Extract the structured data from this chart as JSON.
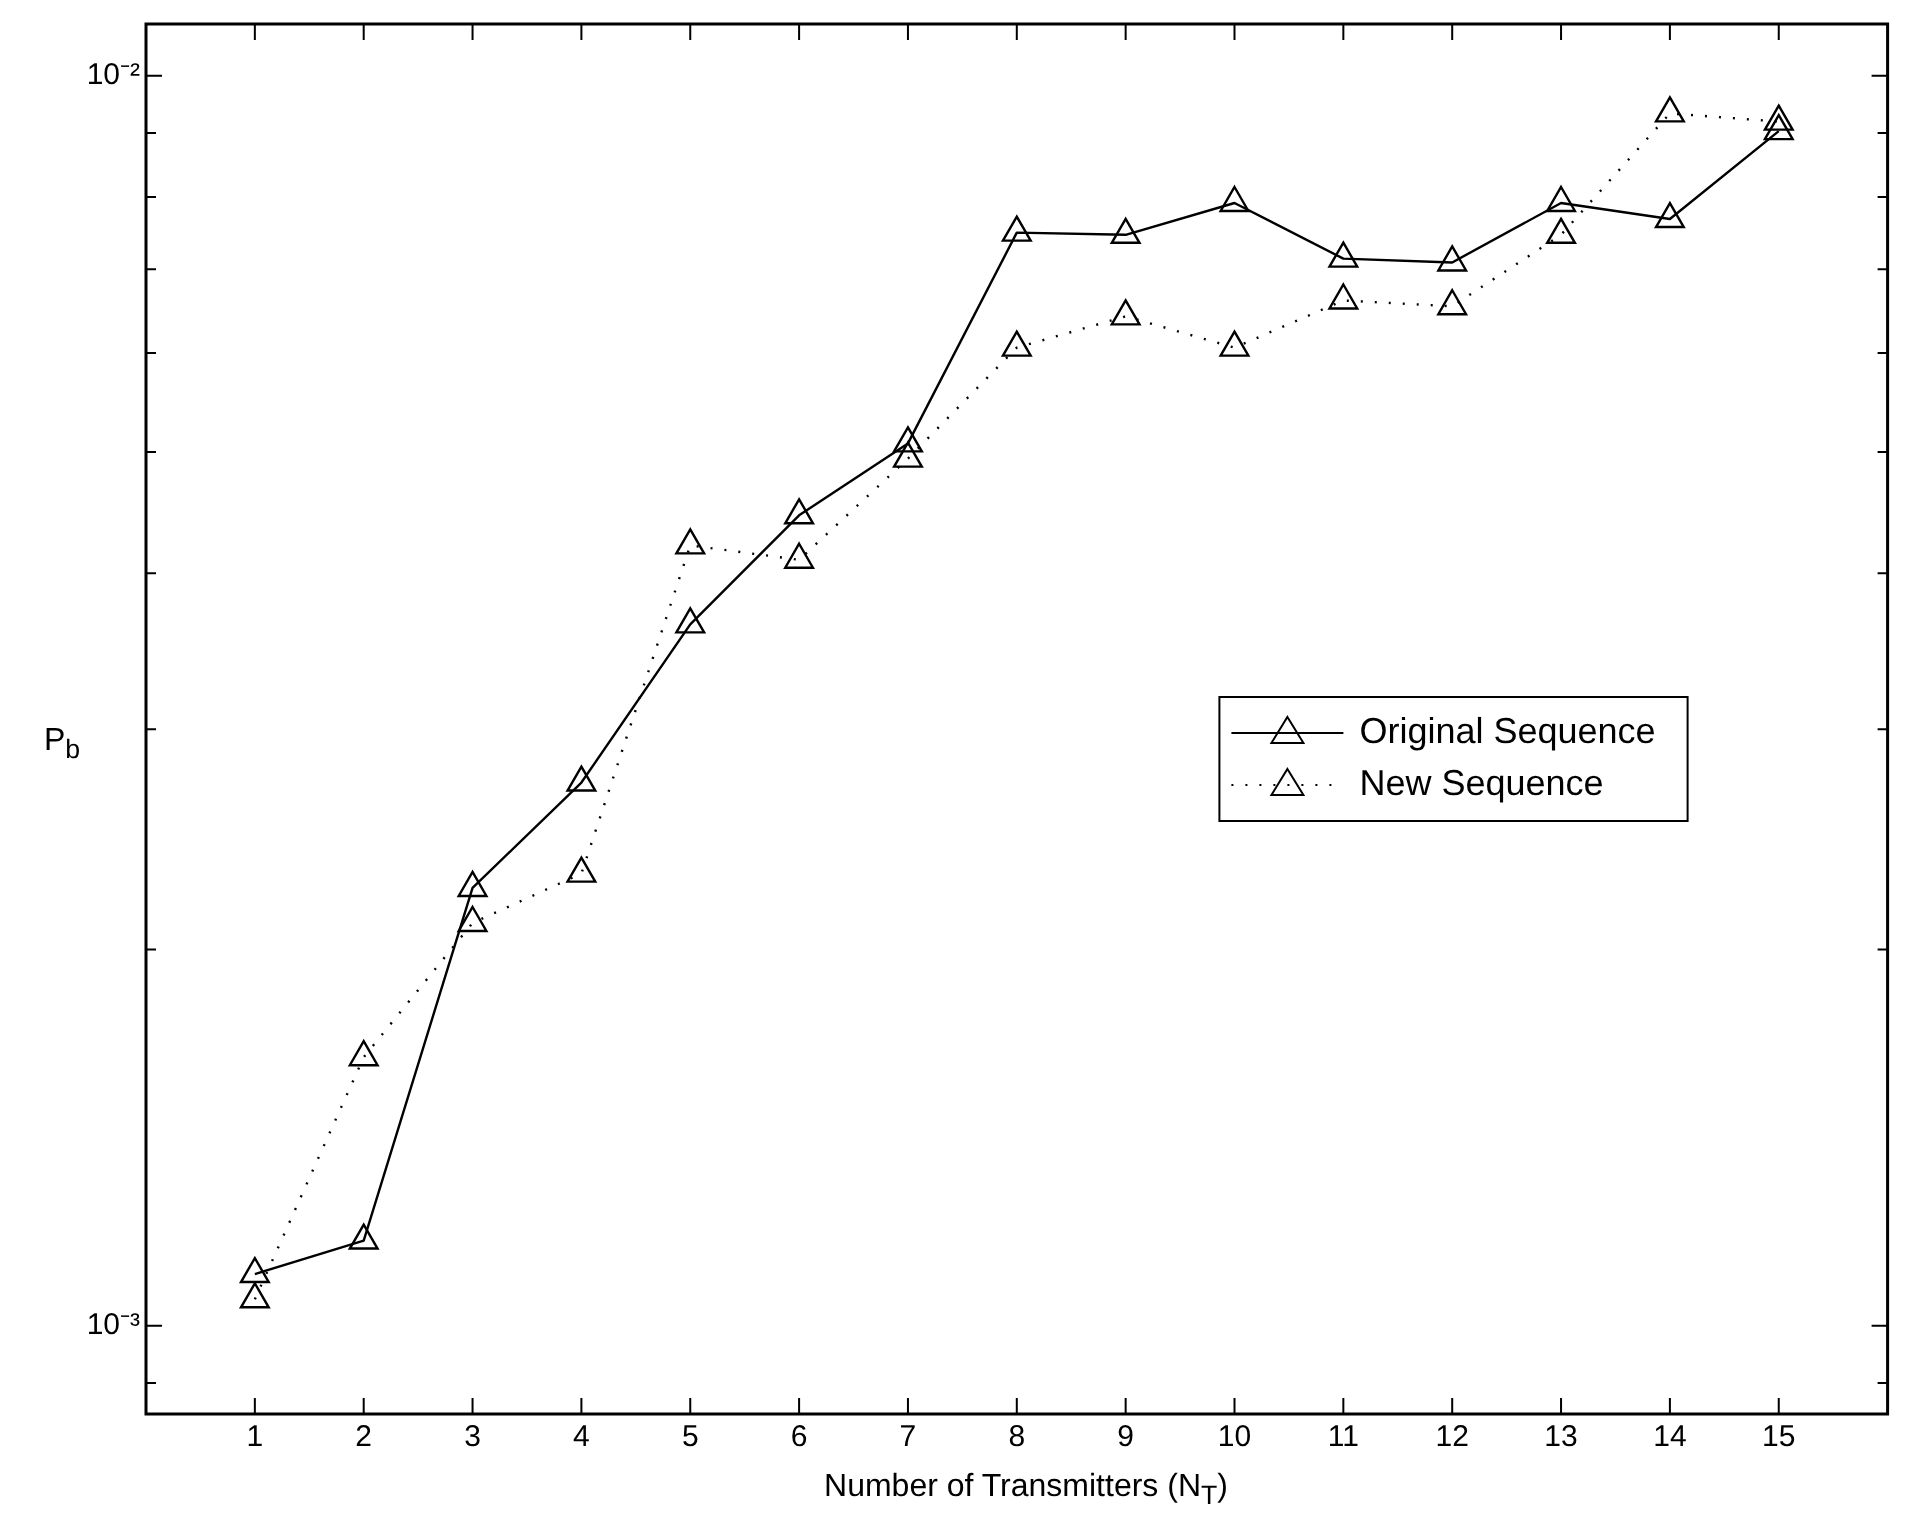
{
  "chart_data": {
    "type": "line",
    "xlabel": "Number of Transmitters (N$_{T}$)",
    "ylabel": "P$_{b}$",
    "x": [
      1,
      2,
      3,
      4,
      5,
      6,
      7,
      8,
      9,
      10,
      11,
      12,
      13,
      14,
      15
    ],
    "series": [
      {
        "name": "Original Sequence",
        "color": "#000000",
        "line_style": "solid",
        "values": [
          0.0011,
          0.00117,
          0.00224,
          0.00272,
          0.00364,
          0.00445,
          0.00508,
          0.00749,
          0.00746,
          0.00791,
          0.00714,
          0.00709,
          0.00791,
          0.00768,
          0.00903
        ]
      },
      {
        "name": "New Sequence",
        "color": "#000000",
        "line_style": "dotted",
        "values": [
          0.00105,
          0.00164,
          0.0021,
          0.0023,
          0.00421,
          0.0041,
          0.00494,
          0.00606,
          0.00642,
          0.00606,
          0.00661,
          0.00654,
          0.00746,
          0.00933,
          0.00919
        ]
      }
    ],
    "log": "y",
    "xlim": [
      0,
      16
    ],
    "ylim": [
      0.00085,
      0.011
    ],
    "xticks": [
      1,
      2,
      3,
      4,
      5,
      6,
      7,
      8,
      9,
      10,
      11,
      12,
      13,
      14,
      15
    ],
    "yticks": [
      {
        "value": 0.0009,
        "label": null
      },
      {
        "value": 0.001,
        "label": "10⁻³"
      },
      {
        "value": 0.002,
        "label": null
      },
      {
        "value": 0.003,
        "label": null
      },
      {
        "value": 0.004,
        "label": null
      },
      {
        "value": 0.005,
        "label": null
      },
      {
        "value": 0.006,
        "label": null
      },
      {
        "value": 0.007,
        "label": null
      },
      {
        "value": 0.008,
        "label": null
      },
      {
        "value": 0.009,
        "label": null
      },
      {
        "value": 0.01,
        "label": "10⁻²"
      }
    ],
    "grid": false,
    "legend": "right",
    "marker": "triangle"
  }
}
